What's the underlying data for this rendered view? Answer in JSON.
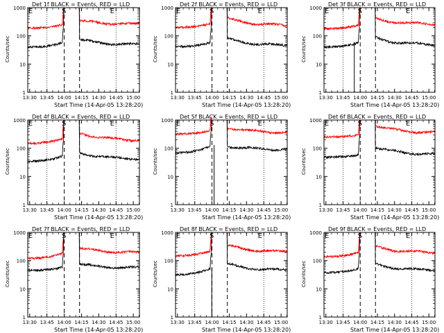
{
  "chart_data": [
    {
      "type": "line",
      "title": "Det 1f BLACK = Events, RED = LLD",
      "xlabel": "Start Time (14-Apr-05 13:28:20)",
      "ylabel": "Counts/sec",
      "yscale": "log",
      "ylim": [
        1,
        1000
      ],
      "xlim": [
        0,
        97
      ],
      "xtick_labels": [
        "13:30",
        "13:45",
        "14:00",
        "14:15",
        "14:30",
        "14:45",
        "15:00"
      ],
      "ytick_labels": [
        "1",
        "10",
        "100",
        "1000"
      ],
      "markers": [
        "E",
        "S",
        "E"
      ],
      "series": [
        {
          "color": "#ff0000",
          "pre": [
            190,
            260
          ],
          "post": [
            350,
            260
          ],
          "spike": null
        },
        {
          "color": "#000000",
          "pre": [
            40,
            60
          ],
          "post": [
            75,
            48
          ],
          "spike": null
        }
      ]
    },
    {
      "type": "line",
      "title": "Det 2f BLACK = Events, RED = LLD",
      "xlabel": "Start Time (14-Apr-05 13:28:20)",
      "ylabel": "Counts/sec",
      "yscale": "log",
      "ylim": [
        1,
        1000
      ],
      "xlim": [
        0,
        97
      ],
      "xtick_labels": [
        "13:30",
        "13:45",
        "14:00",
        "14:15",
        "14:30",
        "14:45",
        "15:00"
      ],
      "ytick_labels": [
        "1",
        "10",
        "100",
        "1000"
      ],
      "markers": [
        "E",
        "S",
        "E"
      ],
      "series": [
        {
          "color": "#ff0000",
          "pre": [
            200,
            280
          ],
          "post": [
            420,
            230
          ],
          "spike": null
        },
        {
          "color": "#000000",
          "pre": [
            42,
            60
          ],
          "post": [
            80,
            45
          ],
          "spike": null
        }
      ]
    },
    {
      "type": "line",
      "title": "Det 3f BLACK = Events, RED = LLD",
      "xlabel": "Start Time (14-Apr-05 13:28:20)",
      "ylabel": "Counts/sec",
      "yscale": "log",
      "ylim": [
        1,
        1000
      ],
      "xlim": [
        0,
        97
      ],
      "xtick_labels": [
        "13:30",
        "13:45",
        "14:00",
        "14:15",
        "14:30",
        "14:45",
        "15:00"
      ],
      "ytick_labels": [
        "1",
        "10",
        "100",
        "1000"
      ],
      "markers": [
        "E",
        "S",
        "E"
      ],
      "series": [
        {
          "color": "#ff0000",
          "pre": [
            180,
            250
          ],
          "post": [
            400,
            260
          ],
          "spike": null
        },
        {
          "color": "#000000",
          "pre": [
            40,
            60
          ],
          "post": [
            85,
            48
          ],
          "spike": 26.5
        }
      ]
    },
    {
      "type": "line",
      "title": "Det 4f BLACK = Events, RED = LLD",
      "xlabel": "Start Time (14-Apr-05 13:28:20)",
      "ylabel": "Counts/sec",
      "yscale": "log",
      "ylim": [
        1,
        1000
      ],
      "xlim": [
        0,
        97
      ],
      "xtick_labels": [
        "13:30",
        "13:45",
        "14:00",
        "14:15",
        "14:30",
        "14:45",
        "15:00"
      ],
      "ytick_labels": [
        "1",
        "10",
        "100",
        "1000"
      ],
      "markers": [
        "E",
        "S",
        "E"
      ],
      "series": [
        {
          "color": "#ff0000",
          "pre": [
            150,
            230
          ],
          "post": [
            350,
            190
          ],
          "spike": null
        },
        {
          "color": "#000000",
          "pre": [
            35,
            55
          ],
          "post": [
            70,
            42
          ],
          "spike": null
        }
      ]
    },
    {
      "type": "line",
      "title": "Det 5f BLACK = Events, RED = LLD",
      "xlabel": "Start Time (14-Apr-05 13:28:20)",
      "ylabel": "Counts/sec",
      "yscale": "log",
      "ylim": [
        1,
        1000
      ],
      "xlim": [
        0,
        97
      ],
      "xtick_labels": [
        "13:30",
        "13:45",
        "14:00",
        "14:15",
        "14:30",
        "14:45",
        "15:00"
      ],
      "ytick_labels": [
        "1",
        "10",
        "100",
        "1000"
      ],
      "markers": [
        "E",
        "S",
        "E"
      ],
      "series": [
        {
          "color": "#ff0000",
          "pre": [
            320,
            420
          ],
          "post": [
            550,
            360
          ],
          "spike": null
        },
        {
          "color": "#000000",
          "pre": [
            70,
            130
          ],
          "post": [
            120,
            90
          ],
          "spike": 33.5
        }
      ]
    },
    {
      "type": "line",
      "title": "Det 6f BLACK = Events, RED = LLD",
      "xlabel": "Start Time (14-Apr-05 13:28:20)",
      "ylabel": "Counts/sec",
      "yscale": "log",
      "ylim": [
        1,
        1000
      ],
      "xlim": [
        0,
        97
      ],
      "xtick_labels": [
        "13:30",
        "13:45",
        "14:00",
        "14:15",
        "14:30",
        "14:45",
        "15:00"
      ],
      "ytick_labels": [
        "1",
        "10",
        "100",
        "1000"
      ],
      "markers": [
        "E",
        "S",
        "E"
      ],
      "series": [
        {
          "color": "#ff0000",
          "pre": [
            250,
            300
          ],
          "post": [
            650,
            350
          ],
          "spike": null
        },
        {
          "color": "#000000",
          "pre": [
            48,
            60
          ],
          "post": [
            110,
            60
          ],
          "spike": null
        }
      ]
    },
    {
      "type": "line",
      "title": "Det 7f BLACK = Events, RED = LLD",
      "xlabel": "Start Time (14-Apr-05 13:28:20)",
      "ylabel": "Counts/sec",
      "yscale": "log",
      "ylim": [
        1,
        1000
      ],
      "xlim": [
        0,
        97
      ],
      "xtick_labels": [
        "13:30",
        "13:45",
        "14:00",
        "14:15",
        "14:30",
        "14:45",
        "15:00"
      ],
      "ytick_labels": [
        "1",
        "10",
        "100",
        "1000"
      ],
      "markers": [
        "E",
        "S",
        "E"
      ],
      "series": [
        {
          "color": "#ff0000",
          "pre": [
            120,
            190
          ],
          "post": [
            280,
            190
          ],
          "spike": null
        },
        {
          "color": "#000000",
          "pre": [
            45,
            60
          ],
          "post": [
            75,
            55
          ],
          "spike": null
        }
      ]
    },
    {
      "type": "line",
      "title": "Det 8f BLACK = Events, RED = LLD",
      "xlabel": "Start Time (14-Apr-05 13:28:20)",
      "ylabel": "Counts/sec",
      "yscale": "log",
      "ylim": [
        1,
        1000
      ],
      "xlim": [
        0,
        97
      ],
      "xtick_labels": [
        "13:30",
        "13:45",
        "14:00",
        "14:15",
        "14:30",
        "14:45",
        "15:00"
      ],
      "ytick_labels": [
        "1",
        "10",
        "100",
        "1000"
      ],
      "markers": [
        "E",
        "S",
        "E"
      ],
      "series": [
        {
          "color": "#ff0000",
          "pre": [
            150,
            230
          ],
          "post": [
            350,
            200
          ],
          "spike": null
        },
        {
          "color": "#000000",
          "pre": [
            32,
            55
          ],
          "post": [
            75,
            45
          ],
          "spike": 31.5
        }
      ]
    },
    {
      "type": "line",
      "title": "Det 9f BLACK = Events, RED = LLD",
      "xlabel": "Start Time (14-Apr-05 13:28:20)",
      "ylabel": "Counts/sec",
      "yscale": "log",
      "ylim": [
        1,
        1000
      ],
      "xlim": [
        0,
        97
      ],
      "xtick_labels": [
        "13:30",
        "13:45",
        "14:00",
        "14:15",
        "14:30",
        "14:45",
        "15:00"
      ],
      "ytick_labels": [
        "1",
        "10",
        "100",
        "1000"
      ],
      "markers": [
        "E",
        "S",
        "E"
      ],
      "series": [
        {
          "color": "#ff0000",
          "pre": [
            140,
            200
          ],
          "post": [
            320,
            190
          ],
          "spike": null
        },
        {
          "color": "#000000",
          "pre": [
            38,
            55
          ],
          "post": [
            75,
            45
          ],
          "spike": null
        }
      ]
    }
  ]
}
